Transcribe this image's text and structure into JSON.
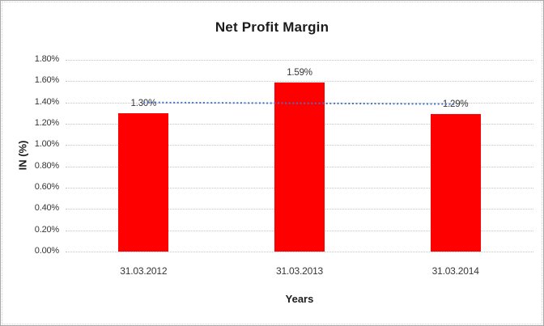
{
  "chart_data": {
    "type": "bar",
    "title": "Net Profit Margin",
    "categories": [
      "31.03.2012",
      "31.03.2013",
      "31.03.2014"
    ],
    "values": [
      1.3,
      1.59,
      1.29
    ],
    "data_labels": [
      "1.30%",
      "1.59%",
      "1.29%"
    ],
    "xlabel": "Years",
    "ylabel": "IN (%)",
    "ylim": [
      0,
      1.8
    ],
    "ytick_step": 0.2,
    "ytick_labels": [
      "0.00%",
      "0.20%",
      "0.40%",
      "0.60%",
      "0.80%",
      "1.00%",
      "1.20%",
      "1.40%",
      "1.60%",
      "1.80%"
    ],
    "grid": true,
    "legend": "none",
    "bar_color": "#ff0000",
    "gridline_color": "#c4c4c4",
    "label_color": "#363636",
    "trendline": {
      "type": "linear",
      "style": "dotted",
      "color": "#4472c4",
      "start_value": 1.4,
      "end_value": 1.385
    }
  }
}
